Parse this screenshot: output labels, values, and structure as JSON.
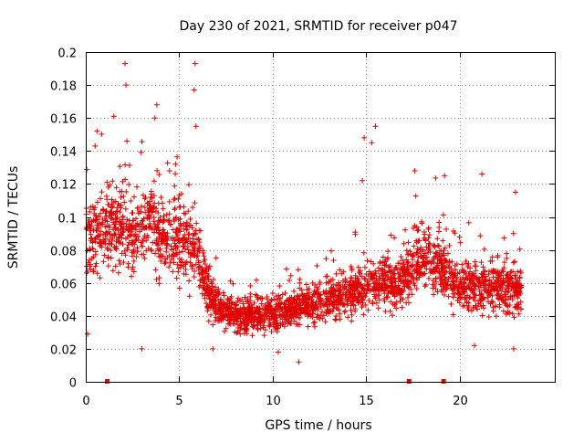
{
  "chart_data": {
    "type": "scatter",
    "title": "Day 230 of 2021, SRMTID for receiver p047",
    "xlabel": "GPS time / hours",
    "ylabel": "SRMTID / TECUs",
    "xlim": [
      0,
      25.1
    ],
    "ylim": [
      0,
      0.2
    ],
    "xticks": [
      0,
      5,
      10,
      15,
      20
    ],
    "xtick_labels": [
      "0",
      "5",
      "10",
      "15",
      "20"
    ],
    "yticks": [
      0,
      0.02,
      0.04,
      0.06,
      0.08,
      0.1,
      0.12,
      0.14,
      0.16,
      0.18,
      0.2
    ],
    "ytick_labels": [
      "0",
      "0.02",
      "0.04",
      "0.06",
      "0.08",
      "0.1",
      "0.12",
      "0.14",
      "0.16",
      "0.18",
      "0.2"
    ],
    "grid": true,
    "marker": "plus",
    "color": "#e00000",
    "series_name": "SRMTID",
    "time_range_hours": [
      0,
      23.3
    ],
    "trend": [
      [
        0.0,
        0.085
      ],
      [
        1.0,
        0.092
      ],
      [
        2.0,
        0.095
      ],
      [
        2.5,
        0.088
      ],
      [
        3.0,
        0.092
      ],
      [
        3.5,
        0.098
      ],
      [
        4.0,
        0.09
      ],
      [
        5.0,
        0.085
      ],
      [
        6.0,
        0.08
      ],
      [
        6.3,
        0.06
      ],
      [
        6.8,
        0.05
      ],
      [
        7.5,
        0.042
      ],
      [
        8.5,
        0.04
      ],
      [
        9.5,
        0.04
      ],
      [
        10.5,
        0.042
      ],
      [
        11.5,
        0.045
      ],
      [
        12.5,
        0.048
      ],
      [
        13.5,
        0.052
      ],
      [
        14.5,
        0.056
      ],
      [
        15.5,
        0.06
      ],
      [
        16.5,
        0.058
      ],
      [
        17.5,
        0.068
      ],
      [
        18.0,
        0.075
      ],
      [
        18.5,
        0.072
      ],
      [
        19.0,
        0.068
      ],
      [
        20.0,
        0.058
      ],
      [
        21.0,
        0.055
      ],
      [
        22.0,
        0.058
      ],
      [
        23.3,
        0.055
      ]
    ],
    "outliers": [
      [
        2.1,
        0.193
      ],
      [
        5.85,
        0.193
      ],
      [
        5.8,
        0.177
      ],
      [
        2.15,
        0.18
      ],
      [
        3.8,
        0.168
      ],
      [
        5.9,
        0.155
      ],
      [
        15.5,
        0.155
      ],
      [
        14.9,
        0.148
      ],
      [
        1.5,
        0.161
      ],
      [
        3.7,
        0.16
      ],
      [
        0.6,
        0.152
      ],
      [
        2.2,
        0.146
      ],
      [
        15.3,
        0.145
      ],
      [
        0.5,
        0.143
      ],
      [
        17.6,
        0.128
      ],
      [
        21.2,
        0.126
      ],
      [
        19.2,
        0.125
      ],
      [
        14.8,
        0.122
      ],
      [
        23.0,
        0.115
      ],
      [
        3.0,
        0.02
      ],
      [
        11.4,
        0.012
      ],
      [
        10.3,
        0.018
      ],
      [
        22.9,
        0.02
      ],
      [
        20.8,
        0.022
      ],
      [
        6.8,
        0.02
      ],
      [
        0.1,
        0.029
      ]
    ],
    "flag_markers_x": [
      1.15,
      17.3,
      19.15
    ]
  }
}
